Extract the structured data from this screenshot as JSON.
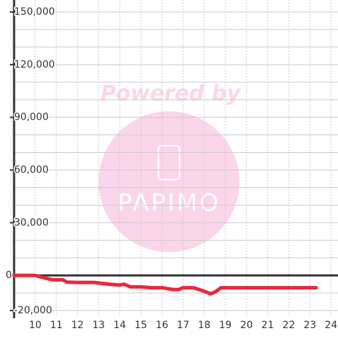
{
  "chart_data": {
    "type": "line",
    "watermark": {
      "title": "Powered by",
      "brand": "PAPIMO"
    },
    "x": [
      9,
      10,
      10.3,
      10.8,
      11.3,
      11.5,
      12,
      12.8,
      13.5,
      14,
      14.2,
      14.5,
      15,
      15.5,
      16,
      16.5,
      16.8,
      17,
      17.5,
      18,
      18.3,
      18.5,
      18.8,
      19,
      23.3
    ],
    "series": [
      {
        "color": "#e8283c",
        "values": [
          0,
          0,
          -1000,
          -2500,
          -2500,
          -3800,
          -4000,
          -4000,
          -5000,
          -5500,
          -5000,
          -6500,
          -6500,
          -7000,
          -7000,
          -8000,
          -8000,
          -7000,
          -7000,
          -9000,
          -10500,
          -9500,
          -7000,
          -7000,
          -7000
        ]
      }
    ],
    "xlim": [
      9,
      24.33
    ],
    "ylim": [
      -20000,
      150000
    ],
    "xticks": [
      10,
      11,
      12,
      13,
      14,
      15,
      16,
      17,
      18,
      19,
      20,
      21,
      22,
      23,
      24
    ],
    "yticks": [
      {
        "value": -20000,
        "label": "-20,000"
      },
      0,
      {
        "value": 30000,
        "label": "30,000"
      },
      {
        "value": 60000,
        "label": "60,000"
      },
      {
        "value": 90000,
        "label": "90,000"
      },
      {
        "value": 120000,
        "label": "120,000"
      },
      {
        "value": 150000,
        "label": "150,000"
      }
    ],
    "yminorticks": [
      -10000,
      10000,
      20000,
      40000,
      50000,
      70000,
      80000,
      100000,
      110000,
      130000,
      140000
    ],
    "grid": true
  }
}
